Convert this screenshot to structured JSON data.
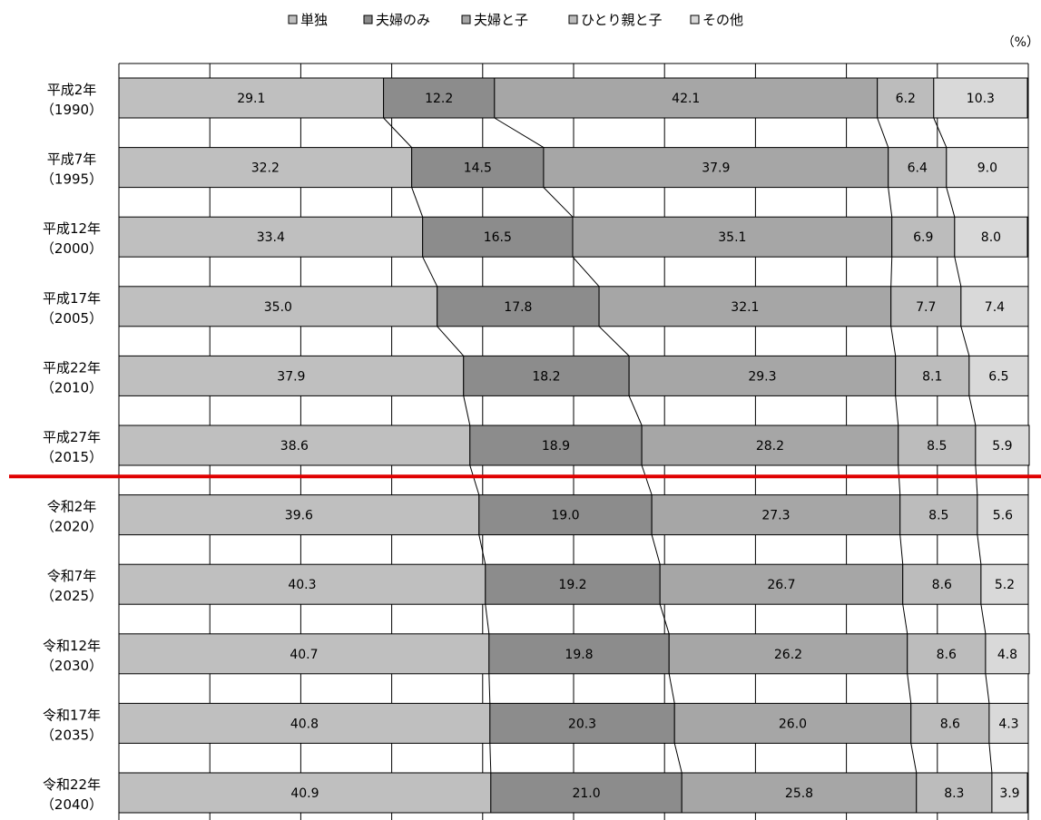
{
  "chart_data": {
    "type": "bar",
    "orientation": "horizontal",
    "stacked": true,
    "unit": "（%）",
    "categories": [
      {
        "line1": "平成2年",
        "line2": "（1990）"
      },
      {
        "line1": "平成7年",
        "line2": "（1995）"
      },
      {
        "line1": "平成12年",
        "line2": "（2000）"
      },
      {
        "line1": "平成17年",
        "line2": "（2005）"
      },
      {
        "line1": "平成22年",
        "line2": "（2010）"
      },
      {
        "line1": "平成27年",
        "line2": "（2015）"
      },
      {
        "line1": "令和2年",
        "line2": "（2020）"
      },
      {
        "line1": "令和7年",
        "line2": "（2025）"
      },
      {
        "line1": "令和12年",
        "line2": "（2030）"
      },
      {
        "line1": "令和17年",
        "line2": "（2035）"
      },
      {
        "line1": "令和22年",
        "line2": "（2040）"
      }
    ],
    "series": [
      {
        "name": "単独",
        "color": "#bfbfbf",
        "values": [
          29.1,
          32.2,
          33.4,
          35.0,
          37.9,
          38.6,
          39.6,
          40.3,
          40.7,
          40.8,
          40.9
        ],
        "labels": [
          "29.1",
          "32.2",
          "33.4",
          "35.0",
          "37.9",
          "38.6",
          "39.6",
          "40.3",
          "40.7",
          "40.8",
          "40.9"
        ]
      },
      {
        "name": "夫婦のみ",
        "color": "#8c8c8c",
        "values": [
          12.2,
          14.5,
          16.5,
          17.8,
          18.2,
          18.9,
          19.0,
          19.2,
          19.8,
          20.3,
          21.0
        ],
        "labels": [
          "12.2",
          "14.5",
          "16.5",
          "17.8",
          "18.2",
          "18.9",
          "19.0",
          "19.2",
          "19.8",
          "20.3",
          "21.0"
        ]
      },
      {
        "name": "夫婦と子",
        "color": "#a6a6a6",
        "values": [
          42.1,
          37.9,
          35.1,
          32.1,
          29.3,
          28.2,
          27.3,
          26.7,
          26.2,
          26.0,
          25.8
        ],
        "labels": [
          "42.1",
          "37.9",
          "35.1",
          "32.1",
          "29.3",
          "28.2",
          "27.3",
          "26.7",
          "26.2",
          "26.0",
          "25.8"
        ]
      },
      {
        "name": "ひとり親と子",
        "color": "#bcbcbc",
        "values": [
          6.2,
          6.4,
          6.9,
          7.7,
          8.1,
          8.5,
          8.5,
          8.6,
          8.6,
          8.6,
          8.3
        ],
        "labels": [
          "6.2",
          "6.4",
          "6.9",
          "7.7",
          "8.1",
          "8.5",
          "8.5",
          "8.6",
          "8.6",
          "8.6",
          "8.3"
        ]
      },
      {
        "name": "その他",
        "color": "#d9d9d9",
        "values": [
          10.3,
          9.0,
          8.0,
          7.4,
          6.5,
          5.9,
          5.6,
          5.2,
          4.8,
          4.3,
          3.9
        ],
        "labels": [
          "10.3",
          "9.0",
          "8.0",
          "7.4",
          "6.5",
          "5.9",
          "5.6",
          "5.2",
          "4.8",
          "4.3",
          "3.9"
        ]
      }
    ],
    "xlim": [
      0,
      100
    ],
    "grid": true,
    "legend_position": "top",
    "separator_after_category": 5,
    "separator_color": "#e00000",
    "connector_lines": true
  }
}
